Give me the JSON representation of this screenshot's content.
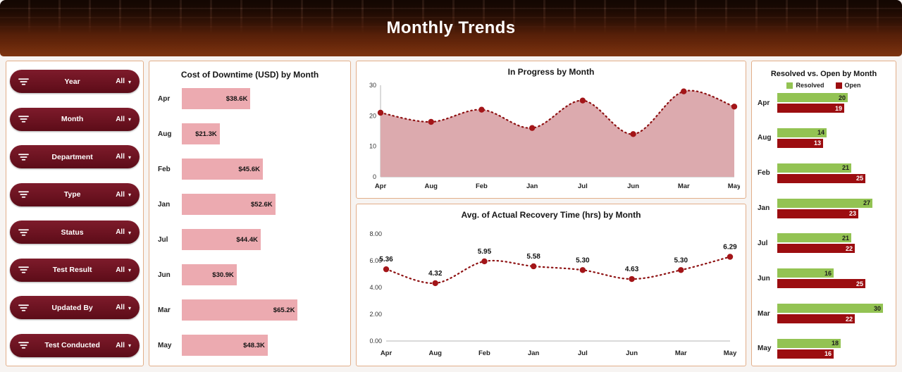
{
  "header": {
    "title": "Monthly Trends"
  },
  "theme": {
    "pill_color_top": "#7e1b2b",
    "pill_color_bottom": "#5c0c18",
    "panel_border": "#e2ae89",
    "header_brown": "#63250a"
  },
  "sidebar": {
    "dropdown_value": "All",
    "filters": [
      {
        "label": "Year",
        "value": "All"
      },
      {
        "label": "Month",
        "value": "All"
      },
      {
        "label": "Department",
        "value": "All"
      },
      {
        "label": "Type",
        "value": "All"
      },
      {
        "label": "Status",
        "value": "All"
      },
      {
        "label": "Test Result",
        "value": "All"
      },
      {
        "label": "Updated By",
        "value": "All"
      },
      {
        "label": "Test Conducted",
        "value": "All"
      }
    ]
  },
  "chart_data": [
    {
      "type": "bar",
      "orientation": "horizontal",
      "title": "Cost of Downtime (USD) by Month",
      "categories": [
        "Apr",
        "Aug",
        "Feb",
        "Jan",
        "Jul",
        "Jun",
        "Mar",
        "May"
      ],
      "values": [
        38.6,
        21.3,
        45.6,
        52.6,
        44.4,
        30.9,
        65.2,
        48.3
      ],
      "labels": [
        "$38.6K",
        "$21.3K",
        "$45.6K",
        "$52.6K",
        "$44.4K",
        "$30.9K",
        "$65.2K",
        "$48.3K"
      ],
      "xlim": [
        0,
        90
      ],
      "bar_color": "#ecaab0"
    },
    {
      "type": "area",
      "title": "In Progress by Month",
      "categories": [
        "Apr",
        "Aug",
        "Feb",
        "Jan",
        "Jul",
        "Jun",
        "Mar",
        "May"
      ],
      "values": [
        21,
        18,
        22,
        16,
        25,
        14,
        28,
        23
      ],
      "ylim": [
        0,
        30
      ],
      "yticks": [
        "0",
        "10",
        "20",
        "30"
      ],
      "fill_color": "#dcaaae",
      "line_color": "#8e1112",
      "marker_color": "#a31518",
      "line_style": "dotted"
    },
    {
      "type": "line",
      "title": "Avg. of Actual Recovery Time (hrs) by Month",
      "categories": [
        "Apr",
        "Aug",
        "Feb",
        "Jan",
        "Jul",
        "Jun",
        "Mar",
        "May"
      ],
      "values": [
        5.36,
        4.32,
        5.95,
        5.58,
        5.3,
        4.63,
        5.3,
        6.29
      ],
      "labels": [
        "5.36",
        "4.32",
        "5.95",
        "5.58",
        "5.30",
        "4.63",
        "5.30",
        "6.29"
      ],
      "ylim": [
        0,
        8
      ],
      "yticks": [
        "0.00",
        "2.00",
        "4.00",
        "6.00",
        "8.00"
      ],
      "line_color": "#8e1112",
      "marker_color": "#a31518",
      "line_style": "dotted"
    },
    {
      "type": "bar",
      "orientation": "horizontal",
      "title": "Resolved vs. Open by Month",
      "categories": [
        "Apr",
        "Aug",
        "Feb",
        "Jan",
        "Jul",
        "Jun",
        "Mar",
        "May"
      ],
      "xlim": [
        0,
        32
      ],
      "legend_position": "top",
      "series": [
        {
          "name": "Resolved",
          "color": "#93c353",
          "values": [
            20,
            14,
            21,
            27,
            21,
            16,
            30,
            18
          ]
        },
        {
          "name": "Open",
          "color": "#9c0d10",
          "values": [
            19,
            13,
            25,
            23,
            22,
            25,
            22,
            16
          ]
        }
      ]
    }
  ]
}
